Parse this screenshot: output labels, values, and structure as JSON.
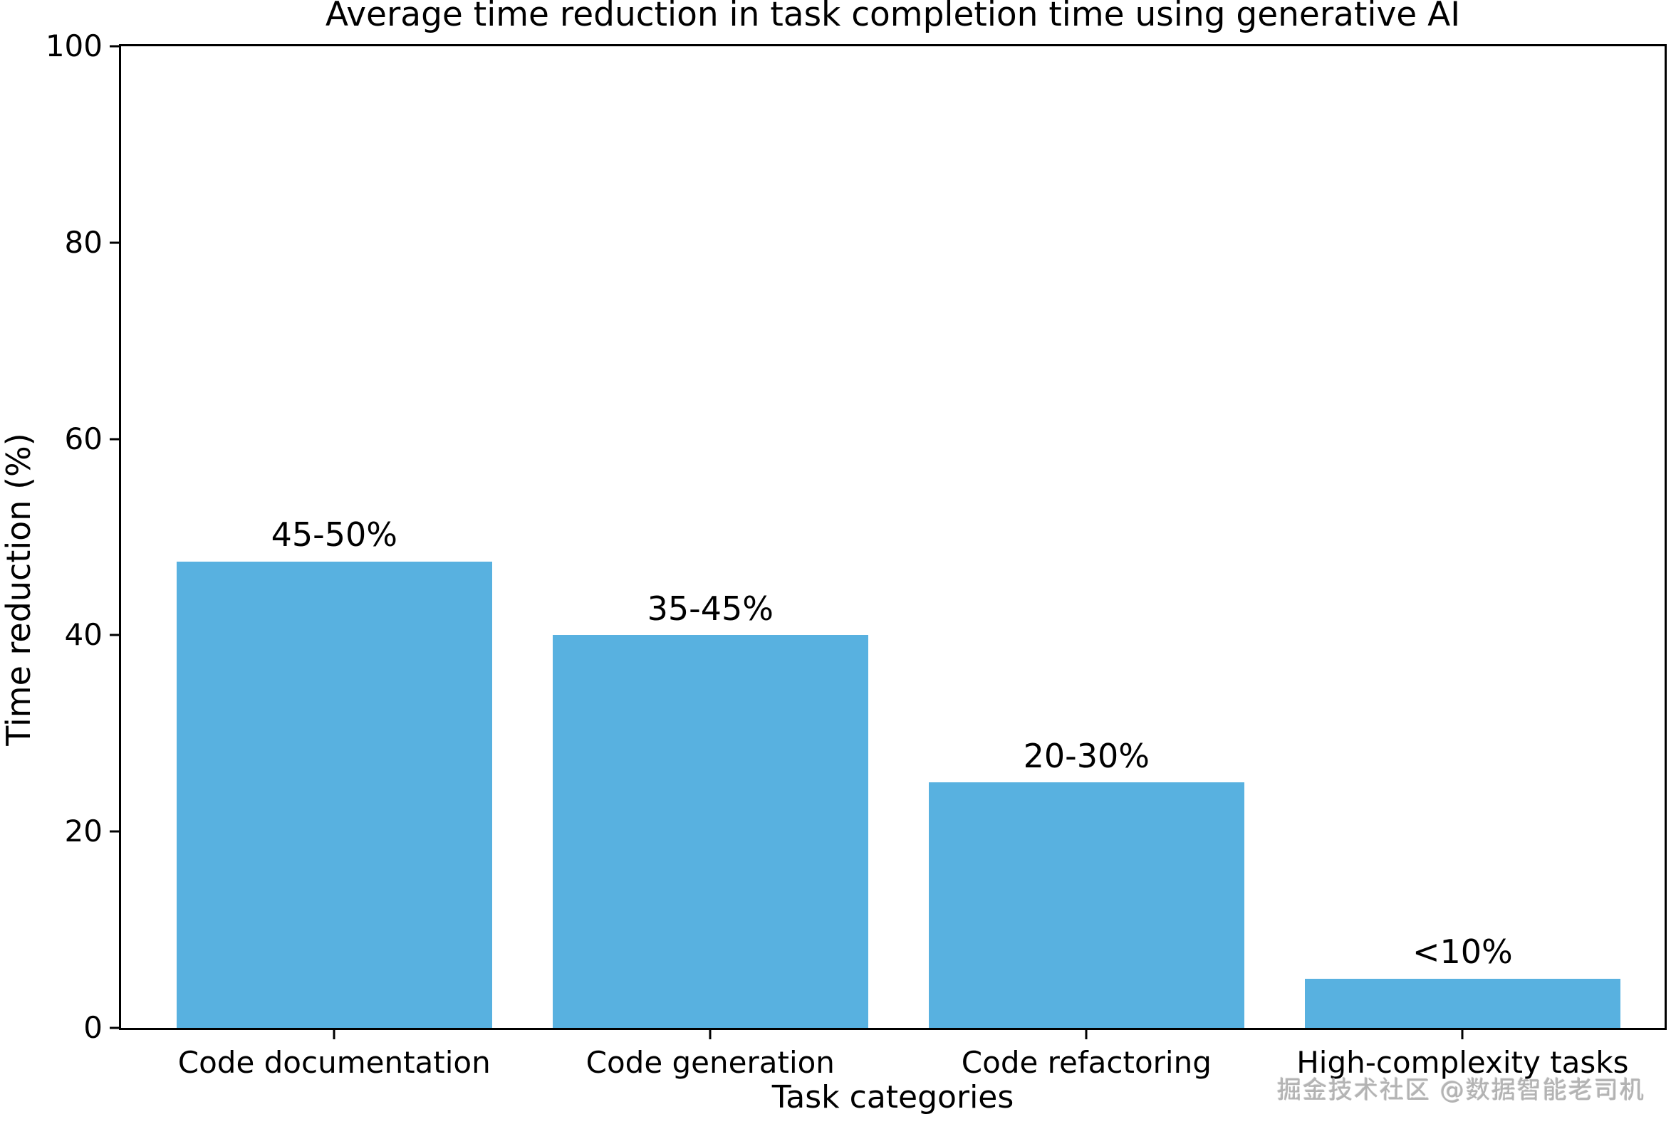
{
  "chart_data": {
    "type": "bar",
    "title": "Average time reduction in task completion time using generative AI",
    "xlabel": "Task categories",
    "ylabel": "Time reduction (%)",
    "categories": [
      "Code documentation",
      "Code generation",
      "Code refactoring",
      "High-complexity tasks"
    ],
    "values": [
      47.5,
      40,
      25,
      5
    ],
    "bar_labels": [
      "45-50%",
      "35-45%",
      "20-30%",
      "<10%"
    ],
    "yticks": [
      0,
      20,
      40,
      60,
      80,
      100
    ],
    "ylim": [
      0,
      100
    ],
    "bar_color": "#58B1E0",
    "axis_color": "#000000",
    "grid": false,
    "legend_position": "none"
  },
  "watermark": {
    "text": "掘金技术社区 @数据智能老司机"
  }
}
